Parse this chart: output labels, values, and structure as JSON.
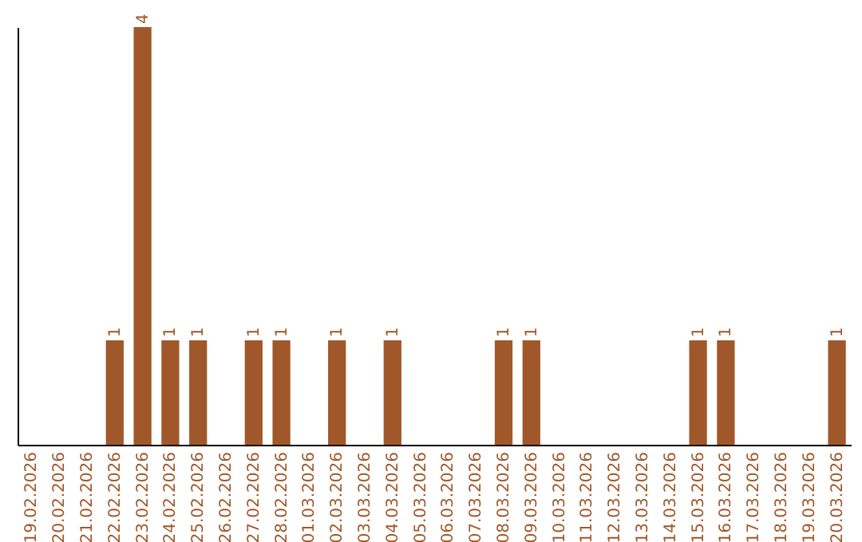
{
  "chart_data": {
    "type": "bar",
    "categories": [
      "19.02.2026",
      "20.02.2026",
      "21.02.2026",
      "22.02.2026",
      "23.02.2026",
      "24.02.2026",
      "25.02.2026",
      "26.02.2026",
      "27.02.2026",
      "28.02.2026",
      "01.03.2026",
      "02.03.2026",
      "03.03.2026",
      "04.03.2026",
      "05.03.2026",
      "06.03.2026",
      "07.03.2026",
      "08.03.2026",
      "09.03.2026",
      "10.03.2026",
      "11.03.2026",
      "12.03.2026",
      "13.03.2026",
      "14.03.2026",
      "15.03.2026",
      "16.03.2026",
      "17.03.2026",
      "18.03.2026",
      "19.03.2026",
      "20.03.2026"
    ],
    "values": [
      0,
      0,
      0,
      1,
      4,
      1,
      1,
      0,
      1,
      1,
      0,
      1,
      0,
      1,
      0,
      0,
      0,
      1,
      1,
      0,
      0,
      0,
      0,
      0,
      1,
      1,
      0,
      0,
      0,
      1
    ],
    "value_labels": [
      null,
      null,
      null,
      "1",
      "4",
      "1",
      "1",
      null,
      "1",
      "1",
      null,
      "1",
      null,
      "1",
      null,
      null,
      null,
      "1",
      "1",
      null,
      null,
      null,
      null,
      null,
      "1",
      "1",
      null,
      null,
      null,
      "1"
    ],
    "color": "#a0582a",
    "tick_labels": "x",
    "grid": false
  }
}
